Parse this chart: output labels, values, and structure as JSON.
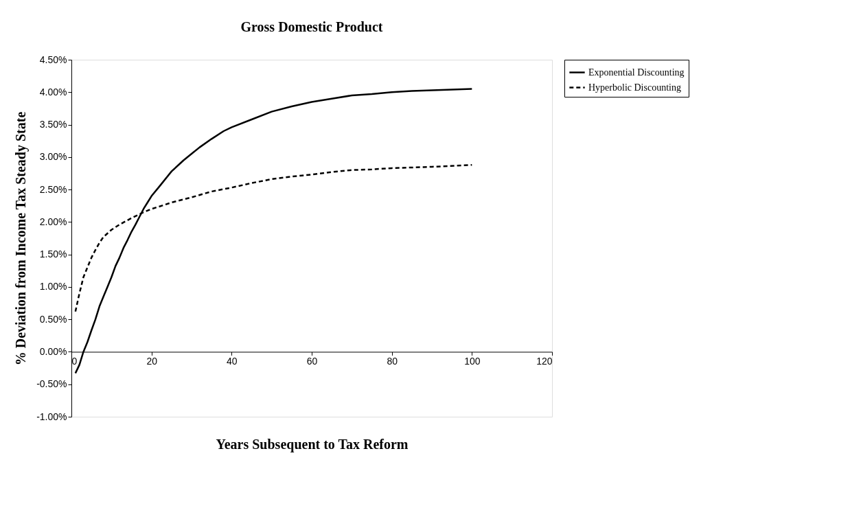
{
  "chart_data": {
    "type": "line",
    "title": "Gross Domestic Product",
    "xlabel": "Years Subsequent to Tax Reform",
    "ylabel": "% Deviation from Income Tax Steady State",
    "xlim": [
      0,
      120
    ],
    "xticks": [
      0,
      20,
      40,
      60,
      80,
      100,
      120
    ],
    "ylim": [
      -1,
      4.5
    ],
    "yticks": [
      {
        "value": -1,
        "label": "-1.00%"
      },
      {
        "value": -0.5,
        "label": "-0.50%"
      },
      {
        "value": 0,
        "label": "0.00%"
      },
      {
        "value": 0.5,
        "label": "0.50%"
      },
      {
        "value": 1,
        "label": "1.00%"
      },
      {
        "value": 1.5,
        "label": "1.50%"
      },
      {
        "value": 2,
        "label": "2.00%"
      },
      {
        "value": 2.5,
        "label": "2.50%"
      },
      {
        "value": 3,
        "label": "3.00%"
      },
      {
        "value": 3.5,
        "label": "3.50%"
      },
      {
        "value": 4,
        "label": "4.00%"
      },
      {
        "value": 4.5,
        "label": "4.50%"
      }
    ],
    "grid": false,
    "legend": "right",
    "marker": "none",
    "series": [
      {
        "name": "Exponential Discounting",
        "color": "#000000",
        "line_style": "solid",
        "x": [
          1,
          2,
          3,
          4,
          5,
          6,
          7,
          8,
          9,
          10,
          11,
          12,
          13,
          14,
          15,
          16,
          17,
          18,
          19,
          20,
          22,
          25,
          28,
          30,
          32,
          35,
          38,
          40,
          45,
          50,
          55,
          60,
          65,
          70,
          75,
          80,
          85,
          90,
          95,
          100
        ],
        "values": [
          -0.33,
          -0.2,
          0.0,
          0.15,
          0.33,
          0.5,
          0.7,
          0.85,
          1.0,
          1.15,
          1.32,
          1.45,
          1.6,
          1.72,
          1.85,
          1.96,
          2.08,
          2.2,
          2.3,
          2.4,
          2.55,
          2.78,
          2.95,
          3.05,
          3.15,
          3.28,
          3.4,
          3.46,
          3.58,
          3.7,
          3.78,
          3.85,
          3.9,
          3.95,
          3.97,
          4.0,
          4.02,
          4.03,
          4.04,
          4.05
        ]
      },
      {
        "name": "Hyperbolic Discounting",
        "color": "#000000",
        "line_style": "dashed",
        "x": [
          1,
          2,
          3,
          4,
          5,
          6,
          7,
          8,
          10,
          12,
          15,
          18,
          20,
          25,
          30,
          35,
          40,
          45,
          50,
          55,
          60,
          65,
          70,
          75,
          80,
          90,
          100
        ],
        "values": [
          0.62,
          0.9,
          1.15,
          1.3,
          1.45,
          1.57,
          1.68,
          1.77,
          1.88,
          1.96,
          2.06,
          2.15,
          2.2,
          2.3,
          2.38,
          2.47,
          2.53,
          2.6,
          2.66,
          2.7,
          2.73,
          2.77,
          2.8,
          2.81,
          2.83,
          2.85,
          2.88
        ]
      }
    ]
  }
}
